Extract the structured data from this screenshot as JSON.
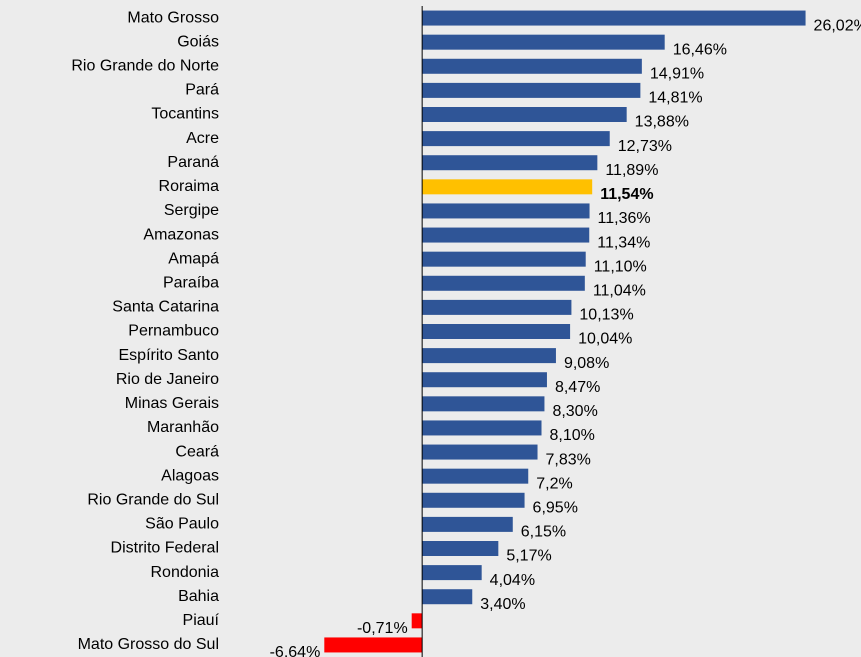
{
  "chart_data": {
    "type": "hbar",
    "categories": [
      "Mato Grosso",
      "Goiás",
      "Rio Grande do Norte",
      "Pará",
      "Tocantins",
      "Acre",
      "Paraná",
      "Roraima",
      "Sergipe",
      "Amazonas",
      "Amapá",
      "Paraíba",
      "Santa Catarina",
      "Pernambuco",
      "Espírito Santo",
      "Rio de Janeiro",
      "Minas Gerais",
      "Maranhão",
      "Ceará",
      "Alagoas",
      "Rio Grande do Sul",
      "São Paulo",
      "Distrito Federal",
      "Rondonia",
      "Bahia",
      "Piauí",
      "Mato Grosso do Sul"
    ],
    "values": [
      26.02,
      16.46,
      14.91,
      14.81,
      13.88,
      12.73,
      11.89,
      11.54,
      11.36,
      11.34,
      11.1,
      11.04,
      10.13,
      10.04,
      9.08,
      8.47,
      8.3,
      8.1,
      7.83,
      7.2,
      6.95,
      6.15,
      5.17,
      4.04,
      3.4,
      -0.71,
      -6.64
    ],
    "value_labels": [
      "26,02%",
      "16,46%",
      "14,91%",
      "14,81%",
      "13,88%",
      "12,73%",
      "11,89%",
      "11,54%",
      "11,36%",
      "11,34%",
      "11,10%",
      "11,04%",
      "10,13%",
      "10,04%",
      "9,08%",
      "8,47%",
      "8,30%",
      "8,10%",
      "7,83%",
      "7,2%",
      "6,95%",
      "6,15%",
      "5,17%",
      "4,04%",
      "3,40%",
      "-0,71%",
      "-6,64%"
    ],
    "colors": [
      "#2f5597",
      "#2f5597",
      "#2f5597",
      "#2f5597",
      "#2f5597",
      "#2f5597",
      "#2f5597",
      "#ffc000",
      "#2f5597",
      "#2f5597",
      "#2f5597",
      "#2f5597",
      "#2f5597",
      "#2f5597",
      "#2f5597",
      "#2f5597",
      "#2f5597",
      "#2f5597",
      "#2f5597",
      "#2f5597",
      "#2f5597",
      "#2f5597",
      "#2f5597",
      "#2f5597",
      "#2f5597",
      "#ff0000",
      "#ff0000"
    ],
    "bold_labels": [
      7
    ],
    "xlim": [
      -7,
      27
    ]
  }
}
